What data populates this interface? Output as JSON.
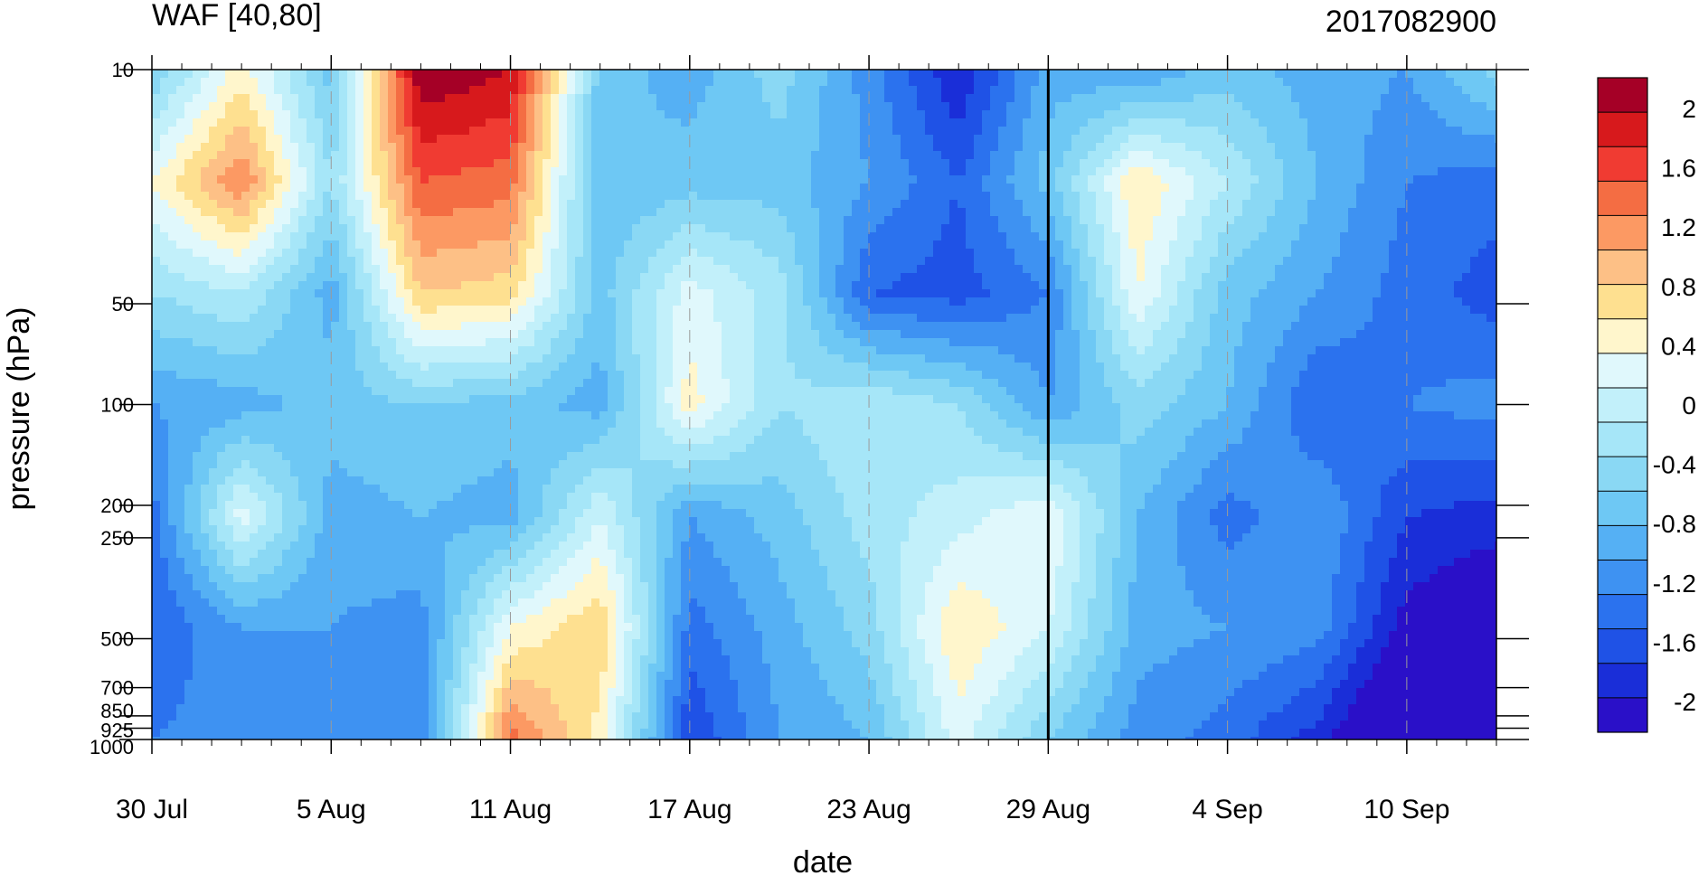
{
  "chart_data": {
    "type": "heatmap",
    "title_left": "WAF [40,80]",
    "title_right": "2017082900",
    "xlabel": "date",
    "ylabel": "pressure (hPa)",
    "x_ticks": [
      "30 Jul",
      "5 Aug",
      "11 Aug",
      "17 Aug",
      "23 Aug",
      "29 Aug",
      "4 Sep",
      "10 Sep"
    ],
    "x_tick_days": [
      0,
      6,
      12,
      18,
      24,
      30,
      36,
      42
    ],
    "x_range_days": [
      0,
      45
    ],
    "y_ticks": [
      "10",
      "50",
      "100",
      "200",
      "250",
      "500",
      "700",
      "850",
      "925",
      "1000"
    ],
    "y_tick_values": [
      10,
      50,
      100,
      200,
      250,
      500,
      700,
      850,
      925,
      1000
    ],
    "y_range": [
      10,
      1000
    ],
    "y_scale": "log",
    "marked_date_day": 30,
    "colorbar": {
      "labels": [
        "2",
        "1.6",
        "1.2",
        "0.8",
        "0.4",
        "0",
        "-0.4",
        "-0.8",
        "-1.2",
        "-1.6",
        "-2"
      ],
      "colors": [
        "#a50026",
        "#d7191c",
        "#f03b32",
        "#f46d43",
        "#fc9963",
        "#fdc086",
        "#fee090",
        "#fff6cc",
        "#e0f8fc",
        "#c2f0fa",
        "#a6e6f8",
        "#8ad8f4",
        "#6ec8f4",
        "#55b0f4",
        "#3e92f2",
        "#2b72ee",
        "#1f52e6",
        "#1a2ed8",
        "#2a10c8"
      ]
    },
    "grid": [
      [
        -0.2,
        0.7,
        -0.3,
        2.2,
        2.0,
        -0.3,
        -0.5,
        -0.1,
        -0.7,
        -1.4,
        -0.5,
        -0.6,
        -0.3,
        -0.5,
        -0.6,
        -0.1
      ],
      [
        0.6,
        1.4,
        0.0,
        1.6,
        1.5,
        -0.4,
        -0.3,
        -0.3,
        -0.6,
        -1.0,
        -0.3,
        0.8,
        0.2,
        -0.4,
        -0.8,
        -0.9
      ],
      [
        0.0,
        0.2,
        -0.5,
        1.0,
        0.9,
        -0.3,
        0.5,
        0.1,
        -1.0,
        -1.1,
        -0.8,
        0.6,
        -0.3,
        -0.6,
        -0.9,
        -1.1
      ],
      [
        -0.6,
        -0.5,
        -0.3,
        -0.2,
        -0.3,
        -0.5,
        0.7,
        0.0,
        0.2,
        0.0,
        -0.6,
        -0.1,
        -0.4,
        -1.0,
        -0.8,
        -0.7
      ],
      [
        -0.9,
        0.5,
        -0.5,
        -0.4,
        -0.5,
        0.4,
        -0.6,
        -0.3,
        0.1,
        0.3,
        0.6,
        -0.4,
        -0.9,
        -0.6,
        -1.2,
        -1.3
      ],
      [
        -1.0,
        -0.6,
        -0.6,
        -0.7,
        0.6,
        1.0,
        -0.9,
        -0.5,
        -0.1,
        0.8,
        0.4,
        -0.5,
        -0.6,
        -0.7,
        -1.5,
        -1.7
      ],
      [
        -0.8,
        -0.7,
        -0.8,
        -0.8,
        1.5,
        0.7,
        -1.2,
        -0.6,
        -0.4,
        0.5,
        -0.2,
        -0.7,
        -0.9,
        -1.3,
        -2.0,
        -1.9
      ]
    ]
  }
}
